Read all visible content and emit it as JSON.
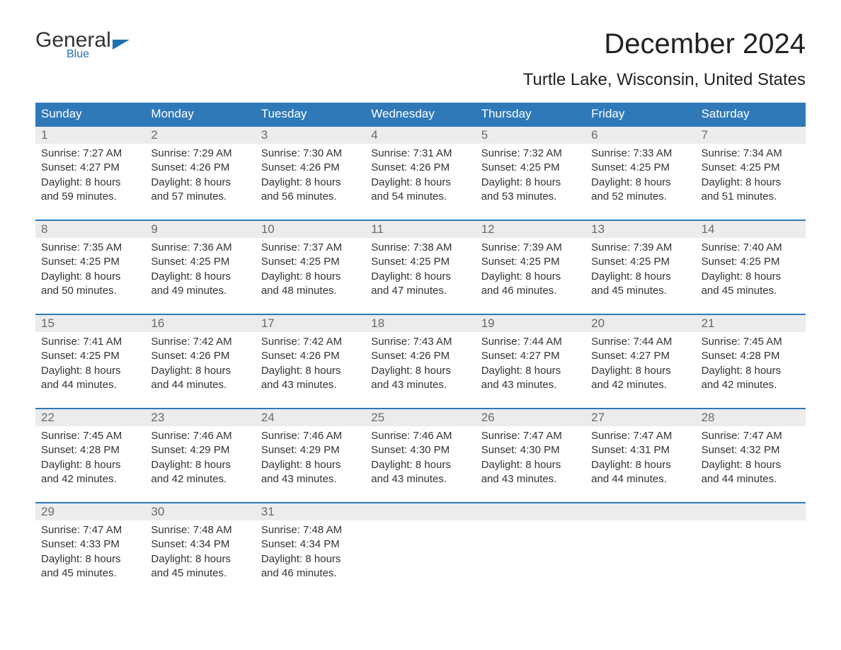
{
  "logo": {
    "part1": "General",
    "part2": "Blue"
  },
  "title": "December 2024",
  "location": "Turtle Lake, Wisconsin, United States",
  "colors": {
    "header_bg": "#2f79b9",
    "header_text": "#ffffff",
    "week_border": "#2f79b9",
    "daynum_bg": "#ececec",
    "daynum_text": "#6b6b6b",
    "body_text": "#333333",
    "logo_blue": "#1f6fb2",
    "page_bg": "#ffffff"
  },
  "days_of_week": [
    "Sunday",
    "Monday",
    "Tuesday",
    "Wednesday",
    "Thursday",
    "Friday",
    "Saturday"
  ],
  "weeks": [
    [
      {
        "n": "1",
        "sr": "Sunrise: 7:27 AM",
        "ss": "Sunset: 4:27 PM",
        "d1": "Daylight: 8 hours",
        "d2": "and 59 minutes."
      },
      {
        "n": "2",
        "sr": "Sunrise: 7:29 AM",
        "ss": "Sunset: 4:26 PM",
        "d1": "Daylight: 8 hours",
        "d2": "and 57 minutes."
      },
      {
        "n": "3",
        "sr": "Sunrise: 7:30 AM",
        "ss": "Sunset: 4:26 PM",
        "d1": "Daylight: 8 hours",
        "d2": "and 56 minutes."
      },
      {
        "n": "4",
        "sr": "Sunrise: 7:31 AM",
        "ss": "Sunset: 4:26 PM",
        "d1": "Daylight: 8 hours",
        "d2": "and 54 minutes."
      },
      {
        "n": "5",
        "sr": "Sunrise: 7:32 AM",
        "ss": "Sunset: 4:25 PM",
        "d1": "Daylight: 8 hours",
        "d2": "and 53 minutes."
      },
      {
        "n": "6",
        "sr": "Sunrise: 7:33 AM",
        "ss": "Sunset: 4:25 PM",
        "d1": "Daylight: 8 hours",
        "d2": "and 52 minutes."
      },
      {
        "n": "7",
        "sr": "Sunrise: 7:34 AM",
        "ss": "Sunset: 4:25 PM",
        "d1": "Daylight: 8 hours",
        "d2": "and 51 minutes."
      }
    ],
    [
      {
        "n": "8",
        "sr": "Sunrise: 7:35 AM",
        "ss": "Sunset: 4:25 PM",
        "d1": "Daylight: 8 hours",
        "d2": "and 50 minutes."
      },
      {
        "n": "9",
        "sr": "Sunrise: 7:36 AM",
        "ss": "Sunset: 4:25 PM",
        "d1": "Daylight: 8 hours",
        "d2": "and 49 minutes."
      },
      {
        "n": "10",
        "sr": "Sunrise: 7:37 AM",
        "ss": "Sunset: 4:25 PM",
        "d1": "Daylight: 8 hours",
        "d2": "and 48 minutes."
      },
      {
        "n": "11",
        "sr": "Sunrise: 7:38 AM",
        "ss": "Sunset: 4:25 PM",
        "d1": "Daylight: 8 hours",
        "d2": "and 47 minutes."
      },
      {
        "n": "12",
        "sr": "Sunrise: 7:39 AM",
        "ss": "Sunset: 4:25 PM",
        "d1": "Daylight: 8 hours",
        "d2": "and 46 minutes."
      },
      {
        "n": "13",
        "sr": "Sunrise: 7:39 AM",
        "ss": "Sunset: 4:25 PM",
        "d1": "Daylight: 8 hours",
        "d2": "and 45 minutes."
      },
      {
        "n": "14",
        "sr": "Sunrise: 7:40 AM",
        "ss": "Sunset: 4:25 PM",
        "d1": "Daylight: 8 hours",
        "d2": "and 45 minutes."
      }
    ],
    [
      {
        "n": "15",
        "sr": "Sunrise: 7:41 AM",
        "ss": "Sunset: 4:25 PM",
        "d1": "Daylight: 8 hours",
        "d2": "and 44 minutes."
      },
      {
        "n": "16",
        "sr": "Sunrise: 7:42 AM",
        "ss": "Sunset: 4:26 PM",
        "d1": "Daylight: 8 hours",
        "d2": "and 44 minutes."
      },
      {
        "n": "17",
        "sr": "Sunrise: 7:42 AM",
        "ss": "Sunset: 4:26 PM",
        "d1": "Daylight: 8 hours",
        "d2": "and 43 minutes."
      },
      {
        "n": "18",
        "sr": "Sunrise: 7:43 AM",
        "ss": "Sunset: 4:26 PM",
        "d1": "Daylight: 8 hours",
        "d2": "and 43 minutes."
      },
      {
        "n": "19",
        "sr": "Sunrise: 7:44 AM",
        "ss": "Sunset: 4:27 PM",
        "d1": "Daylight: 8 hours",
        "d2": "and 43 minutes."
      },
      {
        "n": "20",
        "sr": "Sunrise: 7:44 AM",
        "ss": "Sunset: 4:27 PM",
        "d1": "Daylight: 8 hours",
        "d2": "and 42 minutes."
      },
      {
        "n": "21",
        "sr": "Sunrise: 7:45 AM",
        "ss": "Sunset: 4:28 PM",
        "d1": "Daylight: 8 hours",
        "d2": "and 42 minutes."
      }
    ],
    [
      {
        "n": "22",
        "sr": "Sunrise: 7:45 AM",
        "ss": "Sunset: 4:28 PM",
        "d1": "Daylight: 8 hours",
        "d2": "and 42 minutes."
      },
      {
        "n": "23",
        "sr": "Sunrise: 7:46 AM",
        "ss": "Sunset: 4:29 PM",
        "d1": "Daylight: 8 hours",
        "d2": "and 42 minutes."
      },
      {
        "n": "24",
        "sr": "Sunrise: 7:46 AM",
        "ss": "Sunset: 4:29 PM",
        "d1": "Daylight: 8 hours",
        "d2": "and 43 minutes."
      },
      {
        "n": "25",
        "sr": "Sunrise: 7:46 AM",
        "ss": "Sunset: 4:30 PM",
        "d1": "Daylight: 8 hours",
        "d2": "and 43 minutes."
      },
      {
        "n": "26",
        "sr": "Sunrise: 7:47 AM",
        "ss": "Sunset: 4:30 PM",
        "d1": "Daylight: 8 hours",
        "d2": "and 43 minutes."
      },
      {
        "n": "27",
        "sr": "Sunrise: 7:47 AM",
        "ss": "Sunset: 4:31 PM",
        "d1": "Daylight: 8 hours",
        "d2": "and 44 minutes."
      },
      {
        "n": "28",
        "sr": "Sunrise: 7:47 AM",
        "ss": "Sunset: 4:32 PM",
        "d1": "Daylight: 8 hours",
        "d2": "and 44 minutes."
      }
    ],
    [
      {
        "n": "29",
        "sr": "Sunrise: 7:47 AM",
        "ss": "Sunset: 4:33 PM",
        "d1": "Daylight: 8 hours",
        "d2": "and 45 minutes."
      },
      {
        "n": "30",
        "sr": "Sunrise: 7:48 AM",
        "ss": "Sunset: 4:34 PM",
        "d1": "Daylight: 8 hours",
        "d2": "and 45 minutes."
      },
      {
        "n": "31",
        "sr": "Sunrise: 7:48 AM",
        "ss": "Sunset: 4:34 PM",
        "d1": "Daylight: 8 hours",
        "d2": "and 46 minutes."
      },
      {
        "n": "",
        "sr": "",
        "ss": "",
        "d1": "",
        "d2": ""
      },
      {
        "n": "",
        "sr": "",
        "ss": "",
        "d1": "",
        "d2": ""
      },
      {
        "n": "",
        "sr": "",
        "ss": "",
        "d1": "",
        "d2": ""
      },
      {
        "n": "",
        "sr": "",
        "ss": "",
        "d1": "",
        "d2": ""
      }
    ]
  ]
}
